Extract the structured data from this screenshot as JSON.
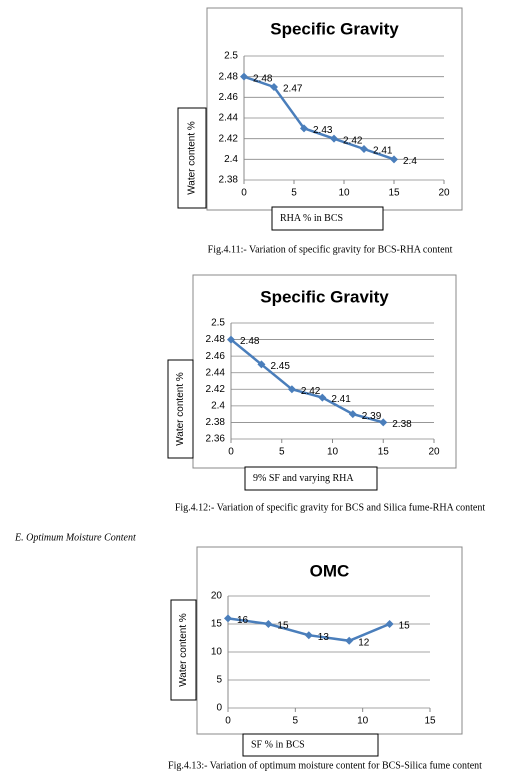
{
  "chart_data": [
    {
      "type": "line",
      "title": "Specific Gravity",
      "x_label": "RHA % in BCS",
      "y_label": "Water content %",
      "caption": "Fig.4.11:- Variation of specific gravity for BCS-RHA content",
      "x": [
        0,
        3,
        6,
        9,
        12,
        15
      ],
      "values": [
        2.48,
        2.47,
        2.43,
        2.42,
        2.41,
        2.4
      ],
      "color": "#4a7ebb",
      "xlim": [
        0,
        20
      ],
      "xticks": [
        0,
        5,
        10,
        15,
        20
      ],
      "ylim": [
        2.38,
        2.5
      ],
      "yticks": [
        2.38,
        2.4,
        2.42,
        2.44,
        2.46,
        2.48,
        2.5
      ],
      "grid": true
    },
    {
      "type": "line",
      "title": "Specific Gravity",
      "x_label": "9% SF and varying RHA",
      "y_label": "Water content %",
      "caption": "Fig.4.12:- Variation of specific gravity for BCS and Silica fume-RHA content",
      "x": [
        0,
        3,
        6,
        9,
        12,
        15
      ],
      "values": [
        2.48,
        2.45,
        2.42,
        2.41,
        2.39,
        2.38
      ],
      "color": "#4a7ebb",
      "xlim": [
        0,
        20
      ],
      "xticks": [
        0,
        5,
        10,
        15,
        20
      ],
      "ylim": [
        2.36,
        2.5
      ],
      "yticks": [
        2.36,
        2.38,
        2.4,
        2.42,
        2.44,
        2.46,
        2.48,
        2.5
      ],
      "grid": true
    },
    {
      "type": "line",
      "title": "OMC",
      "x_label": "SF %  in BCS",
      "y_label": "Water content %",
      "caption": "Fig.4.13:- Variation of optimum moisture content for BCS-Silica fume content",
      "x": [
        0,
        3,
        6,
        9,
        12
      ],
      "values": [
        16,
        15,
        13,
        12,
        15
      ],
      "color": "#4a7ebb",
      "xlim": [
        0,
        15
      ],
      "xticks": [
        0,
        5,
        10,
        15
      ],
      "ylim": [
        0,
        20
      ],
      "yticks": [
        0,
        5,
        10,
        15,
        20
      ],
      "grid": true
    }
  ],
  "section_heading": "E.    Optimum Moisture Content"
}
